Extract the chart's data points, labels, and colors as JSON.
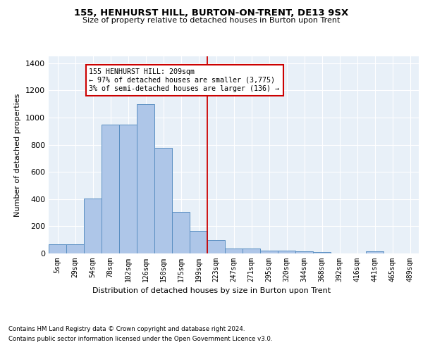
{
  "title": "155, HENHURST HILL, BURTON-ON-TRENT, DE13 9SX",
  "subtitle": "Size of property relative to detached houses in Burton upon Trent",
  "xlabel": "Distribution of detached houses by size in Burton upon Trent",
  "ylabel": "Number of detached properties",
  "categories": [
    "5sqm",
    "29sqm",
    "54sqm",
    "78sqm",
    "102sqm",
    "126sqm",
    "150sqm",
    "175sqm",
    "199sqm",
    "223sqm",
    "247sqm",
    "271sqm",
    "295sqm",
    "320sqm",
    "344sqm",
    "368sqm",
    "392sqm",
    "416sqm",
    "441sqm",
    "465sqm",
    "489sqm"
  ],
  "values": [
    65,
    65,
    405,
    950,
    950,
    1100,
    775,
    305,
    165,
    100,
    35,
    35,
    20,
    20,
    15,
    10,
    0,
    0,
    15,
    0,
    0
  ],
  "bar_color": "#aec6e8",
  "bar_edge_color": "#5a8fc2",
  "vline_color": "#cc0000",
  "annotation_text": "155 HENHURST HILL: 209sqm\n← 97% of detached houses are smaller (3,775)\n3% of semi-detached houses are larger (136) →",
  "annotation_box_color": "#ffffff",
  "annotation_box_edge": "#cc0000",
  "ylim": [
    0,
    1450
  ],
  "yticks": [
    0,
    200,
    400,
    600,
    800,
    1000,
    1200,
    1400
  ],
  "footer_line1": "Contains HM Land Registry data © Crown copyright and database right 2024.",
  "footer_line2": "Contains public sector information licensed under the Open Government Licence v3.0.",
  "background_color": "#e8f0f8",
  "fig_background": "#ffffff"
}
